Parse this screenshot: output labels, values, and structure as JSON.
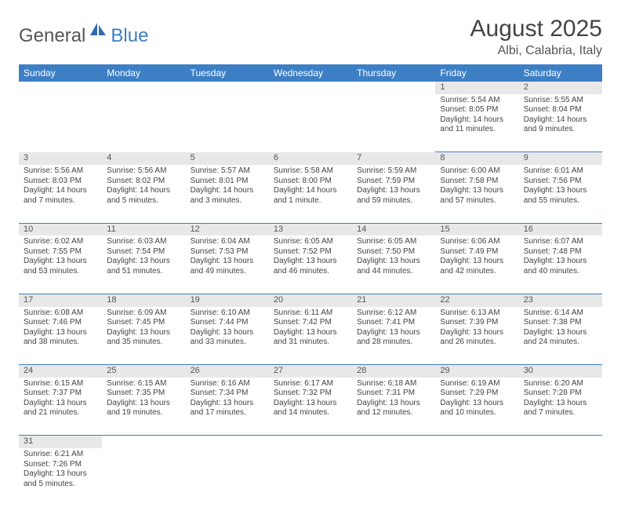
{
  "logo": {
    "part1": "General",
    "part2": "Blue"
  },
  "header": {
    "month_title": "August 2025",
    "location": "Albi, Calabria, Italy"
  },
  "colors": {
    "accent": "#3d7fc4",
    "header_bg": "#3d7fc4",
    "daynum_bg": "#e8e8e8",
    "text": "#444444"
  },
  "weekdays": [
    "Sunday",
    "Monday",
    "Tuesday",
    "Wednesday",
    "Thursday",
    "Friday",
    "Saturday"
  ],
  "weeks": [
    {
      "days": [
        null,
        null,
        null,
        null,
        null,
        {
          "num": "1",
          "sunrise": "Sunrise: 5:54 AM",
          "sunset": "Sunset: 8:05 PM",
          "daylight1": "Daylight: 14 hours",
          "daylight2": "and 11 minutes."
        },
        {
          "num": "2",
          "sunrise": "Sunrise: 5:55 AM",
          "sunset": "Sunset: 8:04 PM",
          "daylight1": "Daylight: 14 hours",
          "daylight2": "and 9 minutes."
        }
      ]
    },
    {
      "days": [
        {
          "num": "3",
          "sunrise": "Sunrise: 5:56 AM",
          "sunset": "Sunset: 8:03 PM",
          "daylight1": "Daylight: 14 hours",
          "daylight2": "and 7 minutes."
        },
        {
          "num": "4",
          "sunrise": "Sunrise: 5:56 AM",
          "sunset": "Sunset: 8:02 PM",
          "daylight1": "Daylight: 14 hours",
          "daylight2": "and 5 minutes."
        },
        {
          "num": "5",
          "sunrise": "Sunrise: 5:57 AM",
          "sunset": "Sunset: 8:01 PM",
          "daylight1": "Daylight: 14 hours",
          "daylight2": "and 3 minutes."
        },
        {
          "num": "6",
          "sunrise": "Sunrise: 5:58 AM",
          "sunset": "Sunset: 8:00 PM",
          "daylight1": "Daylight: 14 hours",
          "daylight2": "and 1 minute."
        },
        {
          "num": "7",
          "sunrise": "Sunrise: 5:59 AM",
          "sunset": "Sunset: 7:59 PM",
          "daylight1": "Daylight: 13 hours",
          "daylight2": "and 59 minutes."
        },
        {
          "num": "8",
          "sunrise": "Sunrise: 6:00 AM",
          "sunset": "Sunset: 7:58 PM",
          "daylight1": "Daylight: 13 hours",
          "daylight2": "and 57 minutes."
        },
        {
          "num": "9",
          "sunrise": "Sunrise: 6:01 AM",
          "sunset": "Sunset: 7:56 PM",
          "daylight1": "Daylight: 13 hours",
          "daylight2": "and 55 minutes."
        }
      ]
    },
    {
      "days": [
        {
          "num": "10",
          "sunrise": "Sunrise: 6:02 AM",
          "sunset": "Sunset: 7:55 PM",
          "daylight1": "Daylight: 13 hours",
          "daylight2": "and 53 minutes."
        },
        {
          "num": "11",
          "sunrise": "Sunrise: 6:03 AM",
          "sunset": "Sunset: 7:54 PM",
          "daylight1": "Daylight: 13 hours",
          "daylight2": "and 51 minutes."
        },
        {
          "num": "12",
          "sunrise": "Sunrise: 6:04 AM",
          "sunset": "Sunset: 7:53 PM",
          "daylight1": "Daylight: 13 hours",
          "daylight2": "and 49 minutes."
        },
        {
          "num": "13",
          "sunrise": "Sunrise: 6:05 AM",
          "sunset": "Sunset: 7:52 PM",
          "daylight1": "Daylight: 13 hours",
          "daylight2": "and 46 minutes."
        },
        {
          "num": "14",
          "sunrise": "Sunrise: 6:05 AM",
          "sunset": "Sunset: 7:50 PM",
          "daylight1": "Daylight: 13 hours",
          "daylight2": "and 44 minutes."
        },
        {
          "num": "15",
          "sunrise": "Sunrise: 6:06 AM",
          "sunset": "Sunset: 7:49 PM",
          "daylight1": "Daylight: 13 hours",
          "daylight2": "and 42 minutes."
        },
        {
          "num": "16",
          "sunrise": "Sunrise: 6:07 AM",
          "sunset": "Sunset: 7:48 PM",
          "daylight1": "Daylight: 13 hours",
          "daylight2": "and 40 minutes."
        }
      ]
    },
    {
      "days": [
        {
          "num": "17",
          "sunrise": "Sunrise: 6:08 AM",
          "sunset": "Sunset: 7:46 PM",
          "daylight1": "Daylight: 13 hours",
          "daylight2": "and 38 minutes."
        },
        {
          "num": "18",
          "sunrise": "Sunrise: 6:09 AM",
          "sunset": "Sunset: 7:45 PM",
          "daylight1": "Daylight: 13 hours",
          "daylight2": "and 35 minutes."
        },
        {
          "num": "19",
          "sunrise": "Sunrise: 6:10 AM",
          "sunset": "Sunset: 7:44 PM",
          "daylight1": "Daylight: 13 hours",
          "daylight2": "and 33 minutes."
        },
        {
          "num": "20",
          "sunrise": "Sunrise: 6:11 AM",
          "sunset": "Sunset: 7:42 PM",
          "daylight1": "Daylight: 13 hours",
          "daylight2": "and 31 minutes."
        },
        {
          "num": "21",
          "sunrise": "Sunrise: 6:12 AM",
          "sunset": "Sunset: 7:41 PM",
          "daylight1": "Daylight: 13 hours",
          "daylight2": "and 28 minutes."
        },
        {
          "num": "22",
          "sunrise": "Sunrise: 6:13 AM",
          "sunset": "Sunset: 7:39 PM",
          "daylight1": "Daylight: 13 hours",
          "daylight2": "and 26 minutes."
        },
        {
          "num": "23",
          "sunrise": "Sunrise: 6:14 AM",
          "sunset": "Sunset: 7:38 PM",
          "daylight1": "Daylight: 13 hours",
          "daylight2": "and 24 minutes."
        }
      ]
    },
    {
      "days": [
        {
          "num": "24",
          "sunrise": "Sunrise: 6:15 AM",
          "sunset": "Sunset: 7:37 PM",
          "daylight1": "Daylight: 13 hours",
          "daylight2": "and 21 minutes."
        },
        {
          "num": "25",
          "sunrise": "Sunrise: 6:15 AM",
          "sunset": "Sunset: 7:35 PM",
          "daylight1": "Daylight: 13 hours",
          "daylight2": "and 19 minutes."
        },
        {
          "num": "26",
          "sunrise": "Sunrise: 6:16 AM",
          "sunset": "Sunset: 7:34 PM",
          "daylight1": "Daylight: 13 hours",
          "daylight2": "and 17 minutes."
        },
        {
          "num": "27",
          "sunrise": "Sunrise: 6:17 AM",
          "sunset": "Sunset: 7:32 PM",
          "daylight1": "Daylight: 13 hours",
          "daylight2": "and 14 minutes."
        },
        {
          "num": "28",
          "sunrise": "Sunrise: 6:18 AM",
          "sunset": "Sunset: 7:31 PM",
          "daylight1": "Daylight: 13 hours",
          "daylight2": "and 12 minutes."
        },
        {
          "num": "29",
          "sunrise": "Sunrise: 6:19 AM",
          "sunset": "Sunset: 7:29 PM",
          "daylight1": "Daylight: 13 hours",
          "daylight2": "and 10 minutes."
        },
        {
          "num": "30",
          "sunrise": "Sunrise: 6:20 AM",
          "sunset": "Sunset: 7:28 PM",
          "daylight1": "Daylight: 13 hours",
          "daylight2": "and 7 minutes."
        }
      ]
    },
    {
      "days": [
        {
          "num": "31",
          "sunrise": "Sunrise: 6:21 AM",
          "sunset": "Sunset: 7:26 PM",
          "daylight1": "Daylight: 13 hours",
          "daylight2": "and 5 minutes."
        },
        null,
        null,
        null,
        null,
        null,
        null
      ]
    }
  ]
}
